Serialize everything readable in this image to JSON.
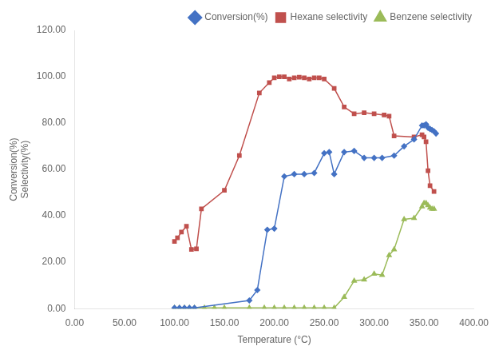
{
  "chart_data": {
    "type": "line",
    "xlabel": "Temperature (°C)",
    "ylabel": "Conversion(%)\nSelectivity(%)",
    "xlim": [
      0.0,
      400.0
    ],
    "ylim": [
      0.0,
      120.0
    ],
    "xticks": [
      {
        "value": 0,
        "label": "0.00"
      },
      {
        "value": 50,
        "label": "50.00"
      },
      {
        "value": 100,
        "label": "100.00"
      },
      {
        "value": 150,
        "label": "150.00"
      },
      {
        "value": 200,
        "label": "200.00"
      },
      {
        "value": 250,
        "label": "250.00"
      },
      {
        "value": 300,
        "label": "300.00"
      },
      {
        "value": 350,
        "label": "350.00"
      },
      {
        "value": 400,
        "label": "400.00"
      }
    ],
    "yticks": [
      {
        "value": 0,
        "label": "0.00"
      },
      {
        "value": 20,
        "label": "20.00"
      },
      {
        "value": 40,
        "label": "40.00"
      },
      {
        "value": 60,
        "label": "60.00"
      },
      {
        "value": 80,
        "label": "80.00"
      },
      {
        "value": 100,
        "label": "100.00"
      },
      {
        "value": 120,
        "label": "120.00"
      }
    ],
    "grid": false,
    "legend": "upper right",
    "series": [
      {
        "name": "Conversion(%)",
        "color": "#4472C4",
        "marker": "diamond",
        "x": [
          100,
          105,
          110,
          115,
          120,
          175,
          183,
          193,
          200,
          210,
          220,
          230,
          240,
          250,
          255,
          260,
          270,
          280,
          290,
          300,
          308,
          320,
          330,
          340,
          348,
          350,
          352,
          354,
          356,
          358,
          360,
          362
        ],
        "values": [
          0.3,
          0.3,
          0.3,
          0.3,
          0.3,
          3.5,
          8.0,
          34.0,
          34.5,
          57.0,
          58.0,
          58.0,
          58.5,
          67.0,
          67.5,
          58.0,
          67.5,
          68.0,
          65.0,
          65.0,
          65.0,
          66.0,
          70.0,
          73.0,
          79.0,
          79.0,
          79.5,
          78.0,
          77.5,
          77.0,
          76.5,
          75.5
        ]
      },
      {
        "name": "Hexane selectivity",
        "color": "#C0504D",
        "marker": "square",
        "x": [
          100,
          103,
          107,
          112,
          117,
          122,
          127,
          150,
          165,
          185,
          195,
          200,
          205,
          210,
          215,
          220,
          225,
          230,
          235,
          240,
          245,
          250,
          260,
          270,
          280,
          290,
          300,
          310,
          315,
          320,
          340,
          348,
          350,
          352,
          354,
          356,
          360
        ],
        "values": [
          29.0,
          30.5,
          33.0,
          35.5,
          25.5,
          25.8,
          43.0,
          51.0,
          66.0,
          93.0,
          97.5,
          99.5,
          100.0,
          100.0,
          99.0,
          99.5,
          99.8,
          99.5,
          99.0,
          99.5,
          99.5,
          99.0,
          95.0,
          87.0,
          84.0,
          84.5,
          84.0,
          83.5,
          83.0,
          74.5,
          74.0,
          75.0,
          74.0,
          72.0,
          59.5,
          53.0,
          50.5
        ]
      },
      {
        "name": "Benzene selectivity",
        "color": "#9BBB59",
        "marker": "triangle",
        "x": [
          100,
          105,
          110,
          115,
          120,
          130,
          140,
          150,
          175,
          190,
          200,
          210,
          220,
          230,
          240,
          250,
          260,
          270,
          280,
          290,
          300,
          308,
          315,
          320,
          330,
          340,
          348,
          350,
          352,
          354,
          356,
          358,
          360
        ],
        "values": [
          0.3,
          0.3,
          0.3,
          0.3,
          0.3,
          0.3,
          0.3,
          0.3,
          0.3,
          0.3,
          0.3,
          0.3,
          0.3,
          0.3,
          0.3,
          0.3,
          0.3,
          5.0,
          12.0,
          12.5,
          15.0,
          14.5,
          23.0,
          25.5,
          38.5,
          39.0,
          44.0,
          45.5,
          45.5,
          44.5,
          43.5,
          43.0,
          43.0
        ]
      }
    ]
  }
}
